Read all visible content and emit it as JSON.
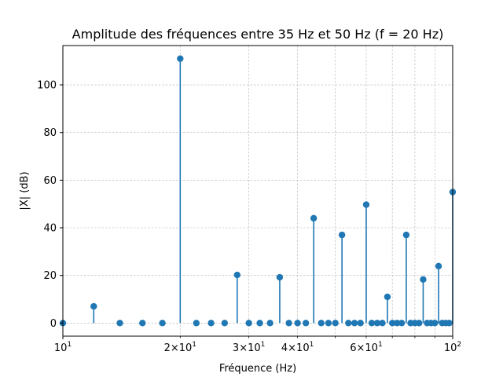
{
  "chart_data": {
    "type": "stem",
    "title": "Amplitude des fréquences entre 35 Hz et 50 Hz (f = 20 Hz)",
    "xlabel": "Fréquence (Hz)",
    "ylabel": "|X| (dB)",
    "xscale": "log",
    "xlim": [
      10,
      100
    ],
    "ylim": [
      -5.5,
      116.5
    ],
    "grid": true,
    "grid_style": "dashed",
    "color": "#1f77b4",
    "x_major_ticks": [
      {
        "value": 10,
        "base": "10",
        "exp": "1"
      },
      {
        "value": 100,
        "base": "10",
        "exp": "2"
      }
    ],
    "x_minor_tick_labels": [
      {
        "value": 20,
        "mantissa": "2",
        "exp": "1"
      },
      {
        "value": 30,
        "mantissa": "3",
        "exp": "1"
      },
      {
        "value": 40,
        "mantissa": "4",
        "exp": "1"
      },
      {
        "value": 60,
        "mantissa": "6",
        "exp": "1"
      }
    ],
    "y_ticks": [
      0,
      20,
      40,
      60,
      80,
      100
    ],
    "points": [
      {
        "x": 10,
        "y": 0
      },
      {
        "x": 12,
        "y": 7
      },
      {
        "x": 14,
        "y": 0
      },
      {
        "x": 16,
        "y": 0
      },
      {
        "x": 18,
        "y": 0
      },
      {
        "x": 20,
        "y": 111
      },
      {
        "x": 22,
        "y": 0
      },
      {
        "x": 24,
        "y": 0
      },
      {
        "x": 26,
        "y": 0
      },
      {
        "x": 28,
        "y": 20.2
      },
      {
        "x": 30,
        "y": 0
      },
      {
        "x": 32,
        "y": 0
      },
      {
        "x": 34,
        "y": 0
      },
      {
        "x": 36,
        "y": 19.2
      },
      {
        "x": 38,
        "y": 0
      },
      {
        "x": 40,
        "y": 0
      },
      {
        "x": 42,
        "y": 0
      },
      {
        "x": 44,
        "y": 44
      },
      {
        "x": 46,
        "y": 0
      },
      {
        "x": 48,
        "y": 0
      },
      {
        "x": 50,
        "y": 0
      },
      {
        "x": 52,
        "y": 37
      },
      {
        "x": 54,
        "y": 0
      },
      {
        "x": 56,
        "y": 0
      },
      {
        "x": 58,
        "y": 0
      },
      {
        "x": 60,
        "y": 49.7
      },
      {
        "x": 62,
        "y": 0
      },
      {
        "x": 64,
        "y": 0
      },
      {
        "x": 66,
        "y": 0
      },
      {
        "x": 68,
        "y": 11
      },
      {
        "x": 70,
        "y": 0
      },
      {
        "x": 72,
        "y": 0
      },
      {
        "x": 74,
        "y": 0
      },
      {
        "x": 76,
        "y": 37
      },
      {
        "x": 78,
        "y": 0
      },
      {
        "x": 80,
        "y": 0
      },
      {
        "x": 82,
        "y": 0
      },
      {
        "x": 84,
        "y": 18.3
      },
      {
        "x": 86,
        "y": 0
      },
      {
        "x": 88,
        "y": 0
      },
      {
        "x": 90,
        "y": 0
      },
      {
        "x": 92,
        "y": 23.9
      },
      {
        "x": 94,
        "y": 0
      },
      {
        "x": 96,
        "y": 0
      },
      {
        "x": 98,
        "y": 0
      },
      {
        "x": 100,
        "y": 55
      }
    ]
  }
}
